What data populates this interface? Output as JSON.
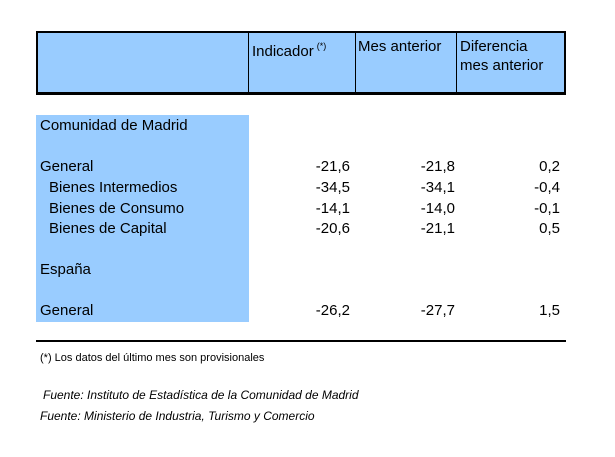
{
  "header": {
    "col_indicador": "Indicador",
    "col_indicador_mark": "(*)",
    "col_mes_anterior": "Mes anterior",
    "col_diferencia_line1": "Diferencia",
    "col_diferencia_line2": "mes anterior"
  },
  "sections": [
    {
      "title": "Comunidad de Madrid",
      "rows": [
        {
          "label": "General",
          "indicador": "-21,6",
          "mes_anterior": "-21,8",
          "diferencia": "0,2"
        },
        {
          "label": "Bienes Intermedios",
          "indicador": "-34,5",
          "mes_anterior": "-34,1",
          "diferencia": "-0,4"
        },
        {
          "label": "Bienes de Consumo",
          "indicador": "-14,1",
          "mes_anterior": "-14,0",
          "diferencia": "-0,1"
        },
        {
          "label": "Bienes de Capital",
          "indicador": "-20,6",
          "mes_anterior": "-21,1",
          "diferencia": "0,5"
        }
      ]
    },
    {
      "title": "España",
      "rows": [
        {
          "label": "General",
          "indicador": "-26,2",
          "mes_anterior": "-27,7",
          "diferencia": "1,5"
        }
      ]
    }
  ],
  "footnote": "(*) Los datos del último mes son provisionales",
  "sources": [
    "Fuente: Instituto de Estadística de la Comunidad de Madrid",
    "Fuente: Ministerio de Industria, Turismo y Comercio"
  ],
  "colors": {
    "header_bg": "#99ccff",
    "label_bg": "#99ccff"
  }
}
